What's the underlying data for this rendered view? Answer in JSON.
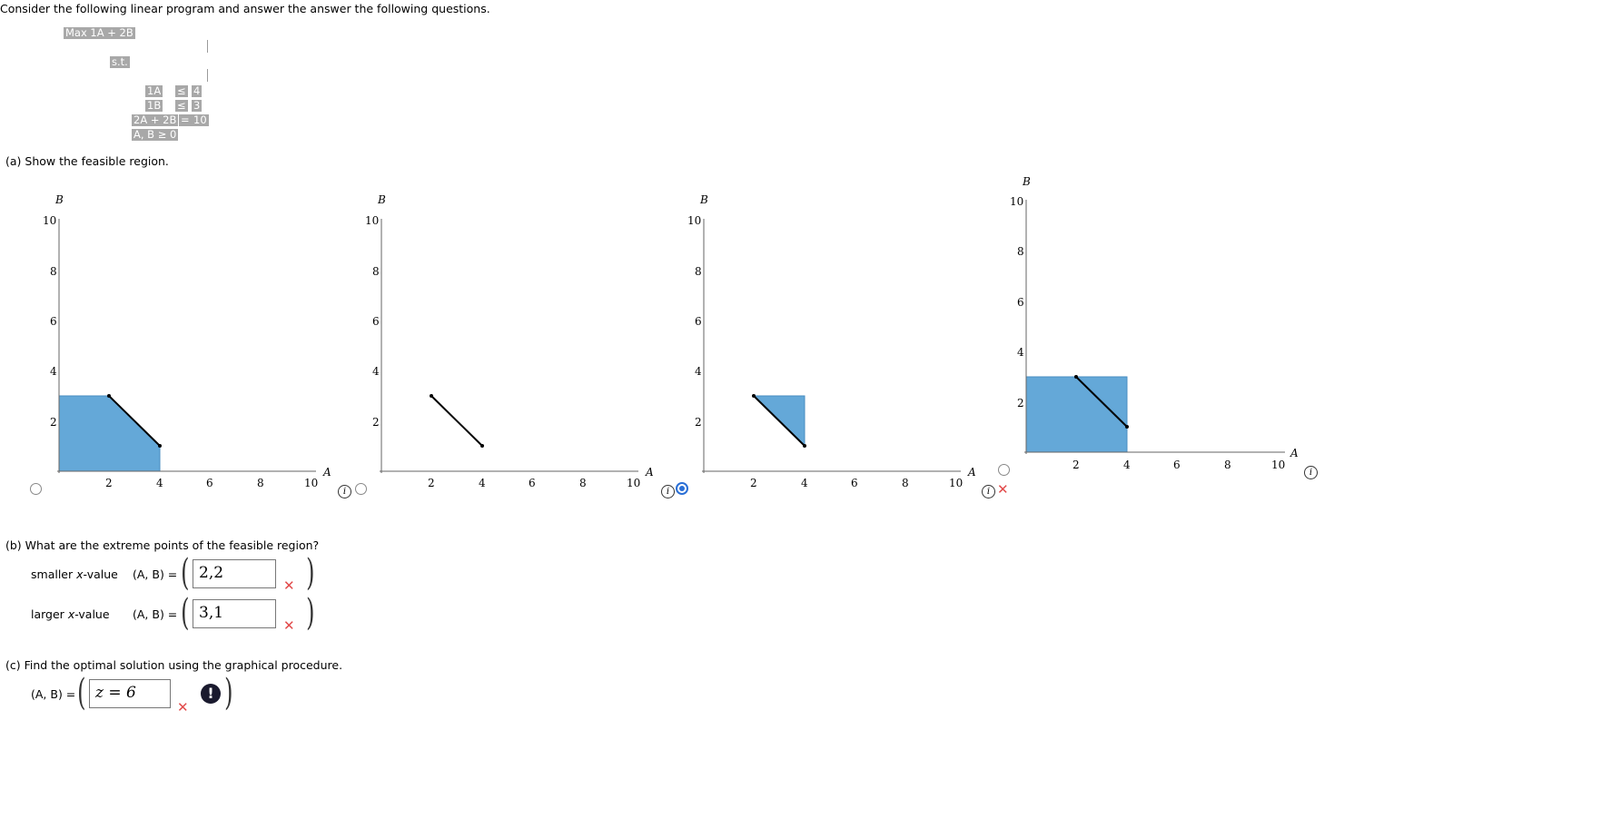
{
  "intro": "Consider the following linear program and answer the answer the following questions.",
  "lp": {
    "objective": "Max 1A + 2B",
    "st": "s.t.",
    "c1_lhs": "1A",
    "c1_op": "≤",
    "c1_rhs": "4",
    "c2_lhs": "1B",
    "c2_op": "≤",
    "c2_rhs": "3",
    "c3_lhs": "2A + 2B",
    "c3_op": "=",
    "c3_rhs": "10",
    "nonneg": "A, B ≥ 0"
  },
  "part_a": {
    "prompt": "(a)  Show the feasible region."
  },
  "graphs": {
    "x_axis_label": "A",
    "y_axis_label": "B",
    "x_ticks": [
      "2",
      "4",
      "6",
      "8",
      "10"
    ],
    "y_ticks": [
      "10",
      "8",
      "6",
      "4",
      "2"
    ],
    "options": [
      {
        "id": "option-1",
        "selected": false,
        "fill": "#64a8d8",
        "region": [
          [
            0,
            0
          ],
          [
            0,
            3
          ],
          [
            2,
            3
          ],
          [
            4,
            1
          ],
          [
            4,
            0
          ]
        ],
        "segment": [
          [
            2,
            3
          ],
          [
            4,
            1
          ]
        ]
      },
      {
        "id": "option-2",
        "selected": false,
        "fill": null,
        "region": null,
        "segment": [
          [
            2,
            3
          ],
          [
            4,
            1
          ]
        ]
      },
      {
        "id": "option-3",
        "selected": true,
        "fill": "#64a8d8",
        "region": [
          [
            2,
            3
          ],
          [
            4,
            3
          ],
          [
            4,
            1
          ]
        ],
        "segment": [
          [
            2,
            3
          ],
          [
            4,
            1
          ]
        ],
        "marked": "incorrect"
      },
      {
        "id": "option-4",
        "selected": false,
        "fill": "#64a8d8",
        "region": [
          [
            0,
            0
          ],
          [
            0,
            3
          ],
          [
            4,
            3
          ],
          [
            4,
            0
          ]
        ],
        "segment": [
          [
            2,
            3
          ],
          [
            4,
            1
          ]
        ]
      }
    ]
  },
  "part_b": {
    "prompt": "(b)  What are the extreme points of the feasible region?",
    "row1_label": "smaller",
    "row1_var": "x",
    "row1_suffix": "-value",
    "row2_label": "larger",
    "row2_var": "x",
    "row2_suffix": "-value",
    "pair_label": "(A, B)  =",
    "row1_value": "2,2",
    "row2_value": "3,1",
    "status": "incorrect"
  },
  "part_c": {
    "prompt": "(c)  Find the optimal solution using the graphical procedure.",
    "pair_label": "(A, B) =",
    "value": "z = 6",
    "status": "incorrect"
  },
  "colors": {
    "incorrect": "#e24a4a",
    "selected": "#2a6fd6",
    "region_fill": "#64a8d8"
  }
}
